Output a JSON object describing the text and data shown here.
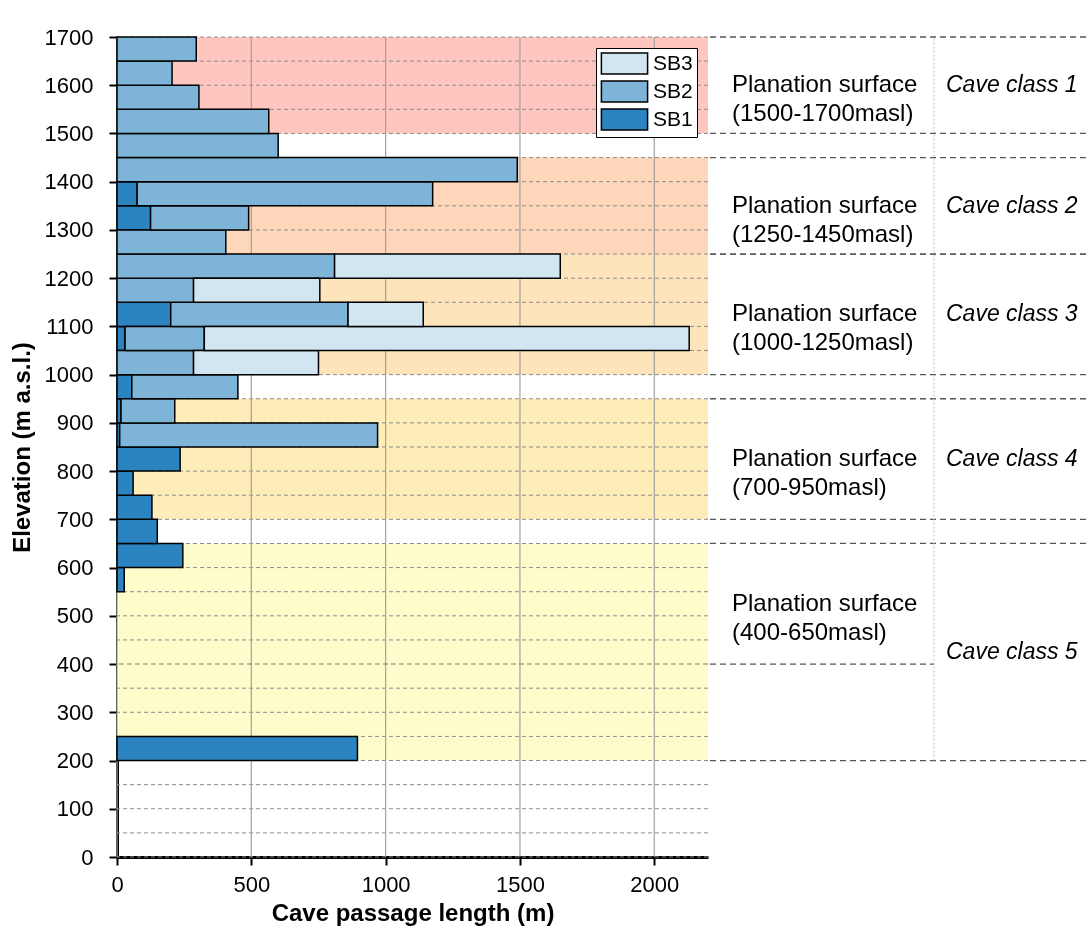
{
  "chart_data": {
    "type": "bar",
    "orientation": "horizontal",
    "stacked": true,
    "xlabel": "Cave passage length (m)",
    "ylabel": "Elevation (m a.s.l.)",
    "x": [
      225,
      275,
      325,
      375,
      425,
      475,
      525,
      575,
      625,
      675,
      725,
      775,
      825,
      875,
      925,
      975,
      1025,
      1075,
      1125,
      1175,
      1225,
      1275,
      1325,
      1375,
      1425,
      1475,
      1525,
      1575,
      1625,
      1675
    ],
    "series": [
      {
        "name": "SB1",
        "color": "#2b84bf",
        "values": [
          895,
          null,
          null,
          null,
          null,
          null,
          null,
          27,
          245,
          150,
          130,
          60,
          235,
          10,
          15,
          55,
          null,
          30,
          200,
          null,
          null,
          null,
          125,
          75,
          null,
          null,
          null,
          null,
          null,
          null
        ]
      },
      {
        "name": "SB2",
        "color": "#7db4d7",
        "values": [
          null,
          null,
          null,
          null,
          null,
          null,
          null,
          null,
          null,
          null,
          null,
          null,
          null,
          960,
          200,
          395,
          285,
          295,
          660,
          285,
          810,
          405,
          365,
          1100,
          1490,
          600,
          565,
          305,
          205,
          295
        ]
      },
      {
        "name": "SB3",
        "color": "#d1e6f0",
        "values": [
          null,
          null,
          null,
          null,
          null,
          null,
          null,
          null,
          null,
          null,
          null,
          null,
          null,
          null,
          null,
          null,
          465,
          1805,
          280,
          470,
          840,
          null,
          null,
          null,
          null,
          null,
          null,
          null,
          null,
          null
        ]
      }
    ],
    "xlim": [
      0,
      2200
    ],
    "xticks": [
      0,
      500,
      1000,
      1500,
      2000
    ],
    "ylim": [
      0,
      1700
    ],
    "yticks": [
      0,
      {
        "value": 50,
        "label": null
      },
      100,
      {
        "value": 150,
        "label": null
      },
      200,
      {
        "value": 250,
        "label": null
      },
      300,
      {
        "value": 350,
        "label": null
      },
      400,
      {
        "value": 450,
        "label": null
      },
      500,
      {
        "value": 550,
        "label": null
      },
      600,
      {
        "value": 650,
        "label": null
      },
      700,
      {
        "value": 750,
        "label": null
      },
      800,
      {
        "value": 850,
        "label": null
      },
      900,
      {
        "value": 950,
        "label": null
      },
      1000,
      {
        "value": 1050,
        "label": null
      },
      1100,
      {
        "value": 1150,
        "label": null
      },
      1200,
      {
        "value": 1250,
        "label": null
      },
      1300,
      {
        "value": 1350,
        "label": null
      },
      1400,
      {
        "value": 1450,
        "label": null
      },
      1500,
      {
        "value": 1550,
        "label": null
      },
      1600,
      {
        "value": 1650,
        "label": null
      },
      1700
    ],
    "bands": [
      {
        "axis": "y",
        "from": 1500,
        "to": 1700,
        "label": "Planation surface (1500-1700masl)",
        "color": "#fec6be"
      },
      {
        "axis": "y",
        "from": 1250,
        "to": 1450,
        "label": "Planation surface (1250-1450masl)",
        "color": "#fed6ba"
      },
      {
        "axis": "y",
        "from": 1000,
        "to": 1250,
        "label": "Planation surface (1000-1250masl)",
        "color": "#fee4ba"
      },
      {
        "axis": "y",
        "from": 700,
        "to": 950,
        "label": "Planation surface (700-950masl)",
        "color": "#feedb8"
      },
      {
        "axis": "y",
        "from": 200,
        "to": 650,
        "label": "Planation surface (400-650masl)",
        "color": "#fffccb"
      }
    ],
    "annotations": [
      "Cave class 1",
      "Cave class 2",
      "Cave class 3",
      "Cave class 4",
      "Cave class 5"
    ],
    "ref_lines": [
      {
        "axis": "y",
        "value": 400
      }
    ],
    "grid": true,
    "legend": "top right"
  }
}
